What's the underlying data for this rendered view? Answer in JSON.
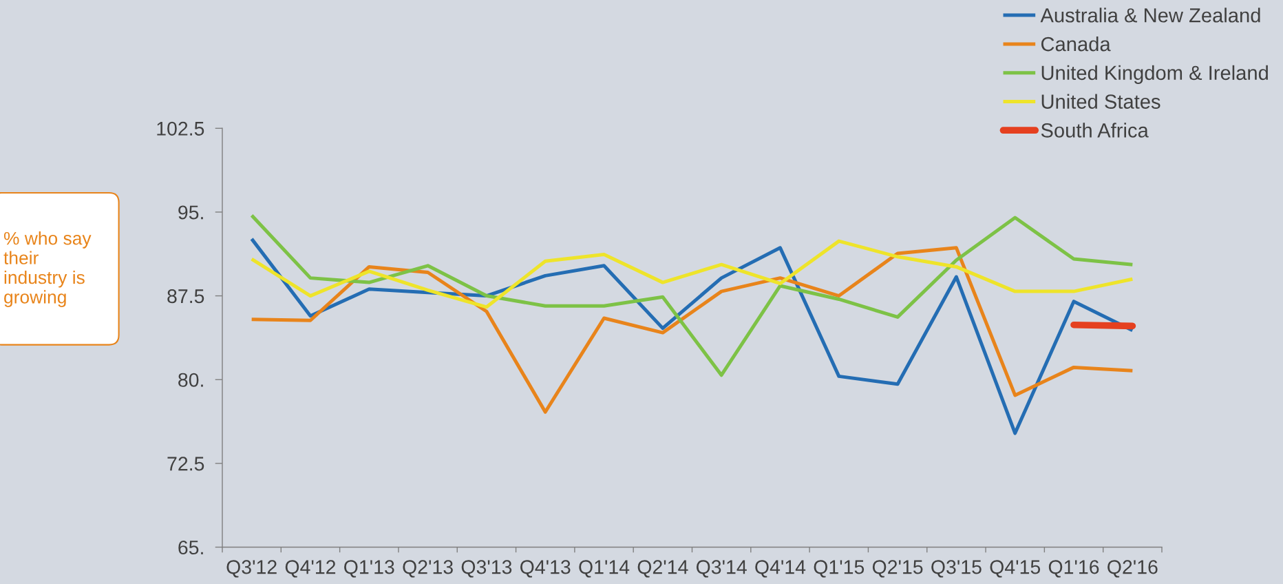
{
  "chart_data": {
    "type": "line",
    "ylabel": "% who say their industry is growing",
    "categories": [
      "Q3'12",
      "Q4'12",
      "Q1'13",
      "Q2'13",
      "Q3'13",
      "Q4'13",
      "Q1'14",
      "Q2'14",
      "Q3'14",
      "Q4'14",
      "Q1'15",
      "Q2'15",
      "Q3'15",
      "Q4'15",
      "Q1'16",
      "Q2'16"
    ],
    "ylim": [
      65,
      102.5
    ],
    "yticks": [
      {
        "value": 65,
        "label": "65."
      },
      72.5,
      {
        "value": 80,
        "label": "80."
      },
      87.5,
      {
        "value": 95,
        "label": "95."
      },
      102.5
    ],
    "legend": "top right",
    "line_style": "solid",
    "series": [
      {
        "name": "Australia & New Zealand",
        "color": "#246db3",
        "values": [
          92.6,
          85.7,
          88.1,
          87.8,
          87.5,
          89.3,
          90.2,
          84.6,
          89.1,
          91.8,
          80.3,
          79.6,
          89.2,
          75.2,
          87.0,
          84.4
        ]
      },
      {
        "name": "Canada",
        "color": "#e8841b",
        "values": [
          85.4,
          85.3,
          90.1,
          89.6,
          86.1,
          77.1,
          85.5,
          84.2,
          87.9,
          89.1,
          87.5,
          91.3,
          91.8,
          78.6,
          81.1,
          80.8
        ]
      },
      {
        "name": "United Kingdom & Ireland",
        "color": "#7dc246",
        "values": [
          94.7,
          89.1,
          88.7,
          90.2,
          87.5,
          86.6,
          86.6,
          87.4,
          80.4,
          88.4,
          87.2,
          85.6,
          90.7,
          94.5,
          90.8,
          90.3
        ]
      },
      {
        "name": "United States",
        "color": "#eee42a",
        "values": [
          90.8,
          87.5,
          89.7,
          88.0,
          86.5,
          90.6,
          91.2,
          88.7,
          90.3,
          88.6,
          92.4,
          91.0,
          90.1,
          87.9,
          87.9,
          89.0
        ]
      },
      {
        "name": "South Africa",
        "color": "#e5401f",
        "values": [
          null,
          null,
          null,
          null,
          null,
          null,
          null,
          null,
          null,
          null,
          null,
          null,
          null,
          null,
          84.9,
          84.8
        ]
      }
    ]
  }
}
